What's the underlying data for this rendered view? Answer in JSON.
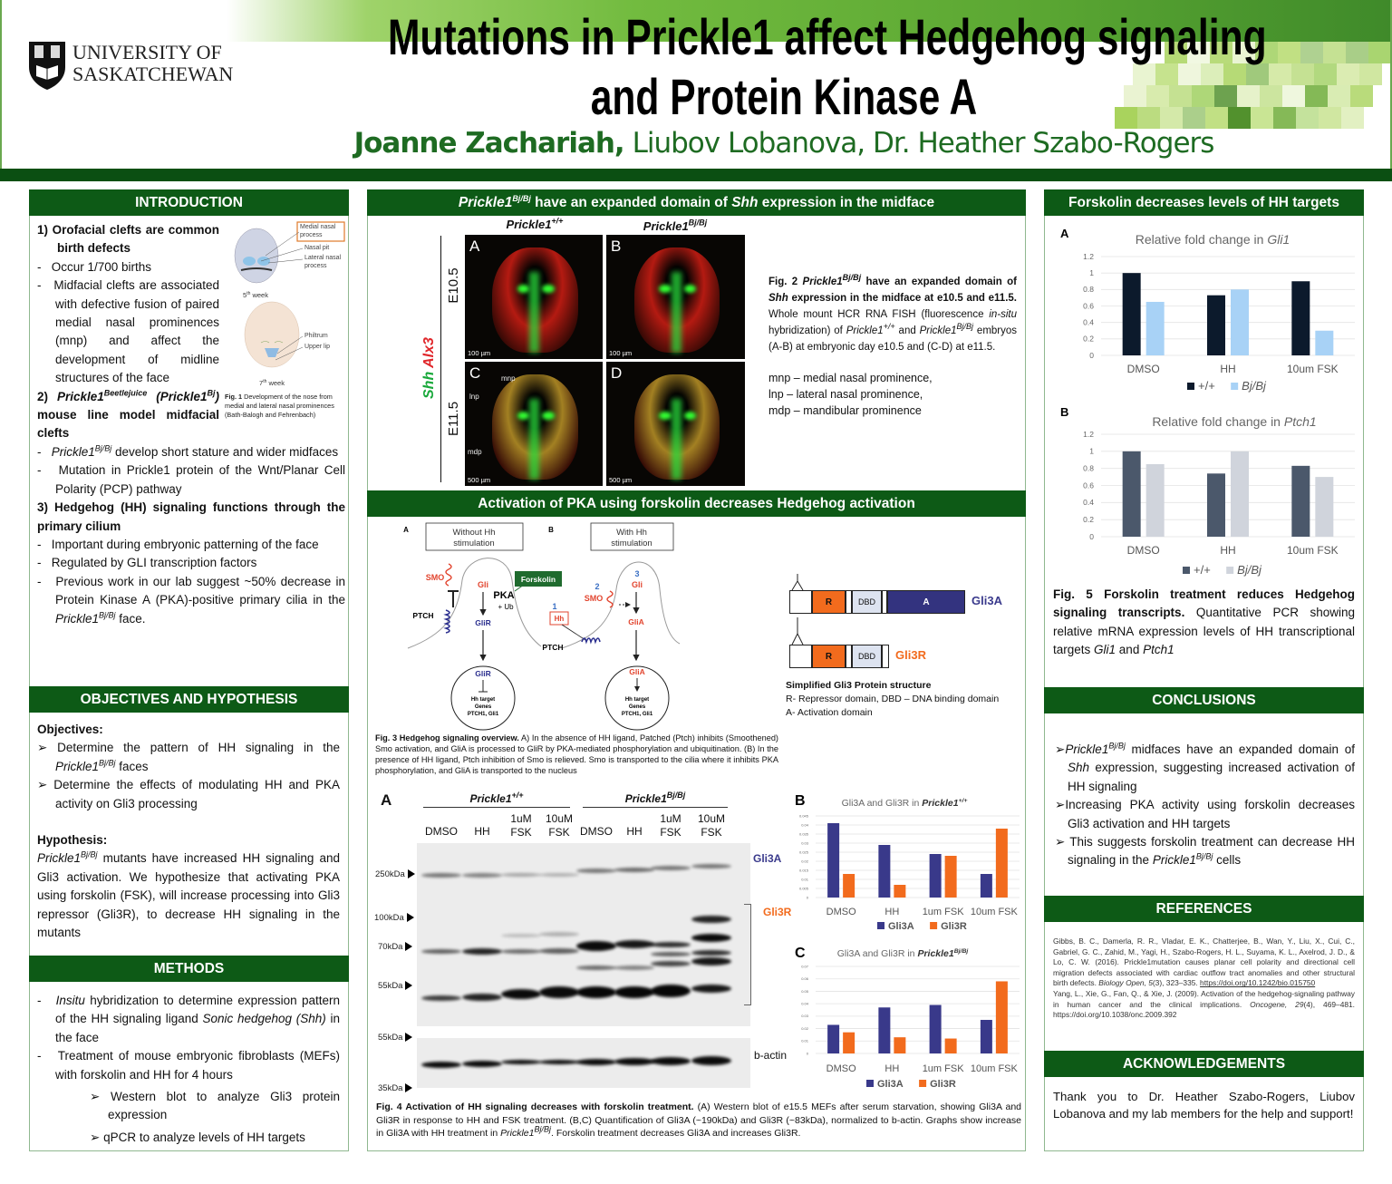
{
  "header": {
    "logo_line1": "UNIVERSITY OF",
    "logo_line2": "SASKATCHEWAN",
    "title_line1": "Mutations in Prickle1 affect Hedgehog signaling",
    "title_line2": "and Protein Kinase A",
    "author_lead": "Joanne Zachariah,",
    "authors_rest": " Liubov Lobanova, Dr. Heather Szabo-Rogers",
    "accent_color": "#0b4f12"
  },
  "intro": {
    "heading": "INTRODUCTION",
    "p1": "1) Orofacial clefts are common birth defects",
    "b1": "Occur 1/700 births",
    "b2": "Midfacial clefts are associated with defective fusion of paired medial nasal prominences (mnp) and affect the development of midline structures of the face",
    "p2_num": "2) ",
    "p2_gene": "Prickle1",
    "p2_sup1": "Beetlejuice",
    "p2_gene2": " (Prickle1",
    "p2_sup2": "Bj",
    "p2_close": ")",
    "p2_rest": " mouse line model midfacial clefts",
    "b3_gene": "Prickle1",
    "b3_sup": "Bj/Bj",
    "b3_rest": " develop short stature and wider midfaces",
    "b4": "Mutation in Prickle1 protein of the Wnt/Planar Cell Polarity (PCP) pathway",
    "p3": "3) Hedgehog (HH) signaling functions through the primary cilium",
    "b5": "Important during embryonic patterning of the face",
    "b6": "Regulated by GLI transcription factors",
    "b7": "Previous work in our lab suggest ~50% decrease in Protein Kinase A (PKA)-positive primary cilia in the ",
    "b7_gene": "Prickle1",
    "b7_sup": "Bj/Bj",
    "b7_end": " face.",
    "fig1": {
      "label_mnp": "Medial nasal process",
      "label_pit": "Nasal pit",
      "label_lnp": "Lateral nasal process",
      "week5_num": "5",
      "week5_sup": "th",
      "week5_word": " week",
      "label_philtrum": "Philtrum",
      "label_lip": "Upper lip",
      "week7_num": "7",
      "week7_sup": "th",
      "week7_word": " week",
      "caption_bold": "Fig. 1",
      "caption": " Development of the nose from medial and lateral nasal prominences (Bath-Balogh and Fehrenbach)"
    }
  },
  "objectives": {
    "heading": "OBJECTIVES AND HYPOTHESIS",
    "label": "Objectives:",
    "o1": "Determine the pattern of HH signaling in the ",
    "o1_gene": "Prickle1",
    "o1_sup": "Bj/Bj",
    "o1_end": " faces",
    "o2": "Determine the effects of modulating HH and PKA activity on Gli3 processing",
    "hyp_label": "Hypothesis:",
    "hyp_gene": "Prickle1",
    "hyp_sup": "Bj/Bj",
    "hyp": " mutants have increased HH signaling and Gli3 activation. We hypothesize that activating PKA using forskolin (FSK), will increase processing into Gli3 repressor (Gli3R), to decrease HH signaling in the mutants"
  },
  "methods": {
    "heading": "METHODS",
    "m1_i": "Insitu",
    "m1": " hybridization to determine expression pattern of the HH signaling ligand ",
    "m1_i2": "Sonic hedgehog (Shh)",
    "m1_end": " in the face",
    "m2": "Treatment of mouse embryonic fibroblasts (MEFs) with forskolin and HH for 4 hours",
    "s1": "Western blot to analyze Gli3 protein expression",
    "s2": "qPCR to analyze levels of HH targets"
  },
  "fig2": {
    "heading_gene": "Prickle1",
    "heading_sup": "Bj/Bj",
    "heading_mid": " have an expanded domain of ",
    "heading_shh": "Shh",
    "heading_end": " expression in the midface",
    "col1_gene": "Prickle1",
    "col1_sup": "+/+",
    "col2_gene": "Prickle1",
    "col2_sup": "Bj/Bj",
    "row1": "E10.5",
    "row2": "E11.5",
    "stain_green": "Shh",
    "stain_red": "Alx3",
    "panels": [
      {
        "letter": "A",
        "scale": "100 µm"
      },
      {
        "letter": "B",
        "scale": "100 µm"
      },
      {
        "letter": "C",
        "scale": "500 µm"
      },
      {
        "letter": "D",
        "scale": "500 µm"
      }
    ],
    "ann_mnp": "mnp",
    "ann_lnp": "lnp",
    "ann_mdp": "mdp",
    "cap_fig": "Fig. 2 ",
    "cap_gene": "Prickle1",
    "cap_sup": "Bj/Bj",
    "cap_b1": " have an expanded domain of ",
    "cap_shh": "Shh",
    "cap_b2": " expression in the midface at e10.5 and e11.5.",
    "cap_t1": " Whole mount HCR RNA FISH (fluorescence ",
    "cap_insitu": "in-situ",
    "cap_t2": " hybridization) of ",
    "cap_g1": "Prickle1",
    "cap_s1": "+/+",
    "cap_and": " and ",
    "cap_g2": "Prickle1",
    "cap_s2": "Bj/Bj",
    "cap_t3": " embryos (A-B) at embryonic day e10.5 and (C-D) at e11.5.",
    "abbr1": "mnp – medial nasal prominence,",
    "abbr2": "lnp – lateral nasal prominence,",
    "abbr3": "mdp – mandibular prominence"
  },
  "pka": {
    "heading": "Activation of PKA using forskolin decreases Hedgehog activation",
    "fig3": {
      "label_a": "A",
      "label_b": "B",
      "box_a1": "Without Hh",
      "box_a2": "stimulation",
      "box_b1": "With Hh",
      "box_b2": "stimulation",
      "smo": "SMO",
      "gli": "Gli",
      "pka": "PKA",
      "ub": "+ Ub",
      "forskolin": "Forskolin",
      "ptch": "PTCH",
      "glir": "GliR",
      "glia": "GliA",
      "hh": "Hh",
      "n1": "1",
      "n2": "2",
      "n3": "3",
      "target1": "Hh target",
      "target2": "Genes",
      "target3": "PTCH1, Gli1",
      "cap_bold": "Fig. 3  Hedgehog signaling overview.",
      "cap": " A) In the absence of HH ligand, Patched (Ptch) inhibits (Smoothened) Smo activation, and GliA is processed to GliR by PKA-mediated phosphorylation and ubiquitination. (B) In the presence of HH ligand, Ptch inhibition of Smo is relieved. Smo is transported to the cilia where it inhibits PKA phosphorylation, and GliA is transported to the nucleus"
    },
    "gli3": {
      "r": "R",
      "dbd": "DBD",
      "a": "A",
      "gli3a": "Gli3A",
      "gli3r": "Gli3R",
      "title": "Simplified Gli3 Protein structure",
      "legend1": "R- Repressor domain,  DBD – DNA binding domain",
      "legend2": "A- Activation domain"
    },
    "western": {
      "letter": "A",
      "group1_gene": "Prickle1",
      "group1_sup": "+/+",
      "group2_gene": "Prickle1",
      "group2_sup": "Bj/Bj",
      "lanes": [
        [
          "",
          "DMSO"
        ],
        [
          "",
          "HH"
        ],
        [
          "1uM",
          "FSK"
        ],
        [
          "10uM",
          "FSK"
        ],
        [
          "",
          "DMSO"
        ],
        [
          "",
          "HH"
        ],
        [
          "1uM",
          "FSK"
        ],
        [
          "10uM",
          "FSK"
        ]
      ],
      "markers": [
        "250kDa",
        "100kDa",
        "70kDa",
        "55kDa"
      ],
      "actin_markers": [
        "55kDa",
        "35kDa"
      ],
      "gli3a": "Gli3A",
      "gli3r": "Gli3R",
      "actin": "b-actin"
    },
    "fig4_cap_bold": "Fig. 4 Activation of HH signaling decreases with forskolin treatment.",
    "fig4_cap1": " (A) Western blot of e15.5 MEFs after serum starvation, showing Gli3A and Gli3R in response to HH and FSK treatment. (B,C) Quantification of Gli3A (~190kDa) and Gli3R (~83kDa), normalized to b-actin. Graphs show increase in Gli3A with HH treatment  in ",
    "fig4_gene": "Prickle1",
    "fig4_sup": "Bj/Bj",
    "fig4_cap2": ". Forskolin treatment decreases Gli3A and  increases Gli3R."
  },
  "right": {
    "heading": "Forskolin decreases levels of HH targets",
    "fig5_bold": "Fig. 5 Forskolin treatment reduces Hedgehog signaling transcripts.",
    "fig5_text": " Quantitative PCR showing relative mRNA expression levels of HH transcriptional targets ",
    "fig5_g1": "Gli1",
    "fig5_and": " and ",
    "fig5_g2": "Ptch1"
  },
  "conclusions": {
    "heading": "CONCLUSIONS",
    "c1_gene": "Prickle1",
    "c1_sup": "Bj/Bj",
    "c1a": " midfaces have an expanded domain of ",
    "c1_shh": "Shh",
    "c1b": " expression, suggesting increased activation of HH signaling",
    "c2": "Increasing PKA activity using forskolin decreases Gli3 activation and HH targets",
    "c3": " This suggests forskolin treatment can decrease HH signaling in the ",
    "c3_gene": "Prickle1",
    "c3_sup": "Bj/Bj",
    "c3_end": " cells"
  },
  "references": {
    "heading": "REFERENCES",
    "r1": "Gibbs, B. C., Damerla, R. R., Vladar, E. K., Chatterjee, B., Wan, Y., Liu, X., Cui, C., Gabriel, G. C., Zahid, M., Yagi, H., Szabo-Rogers, H. L., Suyama, K. L., Axelrod, J. D., & Lo, C. W. (2016). Prickle1mutation causes planar cell polarity and directional cell migration defects associated with cardiac outflow tract anomalies and other structural birth defects. ",
    "r1_journal": "Biology Open, 5",
    "r1_end": "(3), 323–335.",
    "r1_doi": "https://doi.org/10.1242/bio.015750",
    "r2": "Yang, L., Xie, G., Fan, Q., & Xie, J. (2009). Activation of the hedgehog-signaling pathway in human cancer and the clinical implications. ",
    "r2_journal": "Oncogene, 29",
    "r2_end": "(4), 469–481.",
    "r2_doi": "https://doi.org/10.1038/onc.2009.392"
  },
  "acknowledgements": {
    "heading": "ACKNOWLEDGEMENTS",
    "text": "Thank you to Dr. Heather Szabo-Rogers, Liubov Lobanova and my lab members for the help and support!"
  },
  "chart_data": [
    {
      "id": "fig5a",
      "letter": "A",
      "type": "bar",
      "title": "Relative fold change in ",
      "title_italic": "Gli1",
      "title_sup": "",
      "categories": [
        "DMSO",
        "HH",
        "10um FSK"
      ],
      "series": [
        {
          "name": "+/+",
          "color": "#0c1a2c",
          "values": [
            1.0,
            0.73,
            0.9
          ]
        },
        {
          "name": "Bj/Bj",
          "color": "#a8d2f6",
          "values": [
            0.65,
            0.8,
            0.3
          ]
        }
      ],
      "ylim": [
        0,
        1.2
      ],
      "yticks": [
        0,
        0.2,
        0.4,
        0.6,
        0.8,
        1,
        1.2
      ],
      "grid": true,
      "legend": "bottom"
    },
    {
      "id": "fig5b",
      "letter": "B",
      "type": "bar",
      "title": "Relative fold change in ",
      "title_italic": "Ptch1",
      "title_sup": "",
      "categories": [
        "DMSO",
        "HH",
        "10um FSK"
      ],
      "series": [
        {
          "name": "+/+",
          "color": "#4b586b",
          "values": [
            1.0,
            0.74,
            0.83
          ]
        },
        {
          "name": "Bj/Bj",
          "color": "#d0d4dc",
          "values": [
            0.85,
            1.0,
            0.7
          ]
        }
      ],
      "ylim": [
        0,
        1.2
      ],
      "yticks": [
        0,
        0.2,
        0.4,
        0.6,
        0.8,
        1,
        1.2
      ],
      "grid": true,
      "legend": "bottom"
    },
    {
      "id": "fig4b",
      "letter": "B",
      "type": "bar",
      "title": "Gli3A and Gli3R in ",
      "title_italic": "Prickle1",
      "title_sup": "+/+",
      "categories": [
        "DMSO",
        "HH",
        "1um FSK",
        "10um FSK"
      ],
      "series": [
        {
          "name": "Gli3A",
          "color": "#39398a",
          "values": [
            0.041,
            0.029,
            0.024,
            0.013
          ]
        },
        {
          "name": "Gli3R",
          "color": "#f26b1d",
          "values": [
            0.013,
            0.007,
            0.023,
            0.038
          ]
        }
      ],
      "ylim": [
        0,
        0.045
      ],
      "yticks": [
        0,
        0.005,
        0.01,
        0.015,
        0.02,
        0.025,
        0.03,
        0.035,
        0.04,
        0.045
      ],
      "grid": true,
      "legend": "bottom"
    },
    {
      "id": "fig4c",
      "letter": "C",
      "type": "bar",
      "title": "Gli3A and Gli3R in ",
      "title_italic": "Prickle1",
      "title_sup": "Bj/Bj",
      "categories": [
        "DMSO",
        "HH",
        "1um FSK",
        "10um FSK"
      ],
      "series": [
        {
          "name": "Gli3A",
          "color": "#39398a",
          "values": [
            0.023,
            0.037,
            0.039,
            0.027
          ]
        },
        {
          "name": "Gli3R",
          "color": "#f26b1d",
          "values": [
            0.017,
            0.013,
            0.012,
            0.058
          ]
        }
      ],
      "ylim": [
        0,
        0.07
      ],
      "yticks": [
        0,
        0.01,
        0.02,
        0.03,
        0.04,
        0.05,
        0.06,
        0.07
      ],
      "grid": true,
      "legend": "bottom"
    }
  ]
}
